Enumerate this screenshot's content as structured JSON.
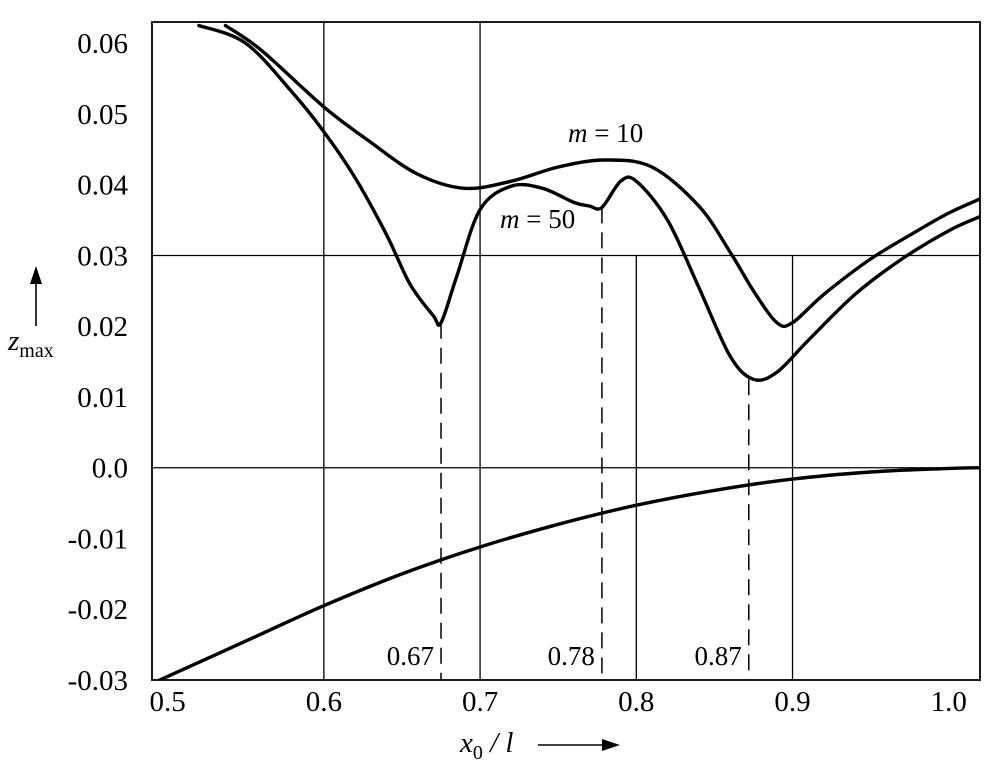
{
  "chart_data": {
    "type": "line",
    "xlabel": "x",
    "xlabel_sub": "0",
    "xlabel_suffix": " / l",
    "ylabel": "z",
    "ylabel_sub": "max",
    "xlim": [
      0.49,
      1.02
    ],
    "ylim": [
      -0.03,
      0.063
    ],
    "x_ticks": [
      0.5,
      0.6,
      0.7,
      0.8,
      0.9,
      1.0
    ],
    "x_tick_labels": [
      "0.5",
      "0.6",
      "0.7",
      "0.8",
      "0.9",
      "1.0"
    ],
    "y_ticks": [
      0.06,
      0.05,
      0.04,
      0.03,
      0.02,
      0.01,
      0.0,
      -0.01,
      -0.02,
      -0.03
    ],
    "y_tick_labels": [
      "0.06",
      "0.05",
      "0.04",
      "0.03",
      "0.02",
      "0.01",
      "0.0",
      "-0.01",
      "-0.02",
      "-0.03"
    ],
    "grid": "partial",
    "series": [
      {
        "name": "m = 10",
        "label_m": "m",
        "label_eq": " = 10",
        "x": [
          0.537,
          0.56,
          0.6,
          0.63,
          0.66,
          0.69,
          0.72,
          0.75,
          0.78,
          0.81,
          0.84,
          0.86,
          0.875,
          0.89,
          0.9,
          0.92,
          0.95,
          0.98,
          1.0,
          1.02
        ],
        "y": [
          0.0625,
          0.059,
          0.051,
          0.046,
          0.0415,
          0.0395,
          0.0405,
          0.0425,
          0.0435,
          0.0425,
          0.037,
          0.0305,
          0.025,
          0.0205,
          0.0205,
          0.0245,
          0.0295,
          0.0335,
          0.036,
          0.038
        ]
      },
      {
        "name": "m = 50",
        "label_m": "m",
        "label_eq": " = 50",
        "x": [
          0.52,
          0.55,
          0.58,
          0.6,
          0.62,
          0.64,
          0.655,
          0.67,
          0.675,
          0.685,
          0.7,
          0.72,
          0.74,
          0.76,
          0.77,
          0.778,
          0.79,
          0.8,
          0.82,
          0.84,
          0.86,
          0.875,
          0.89,
          0.91,
          0.94,
          0.97,
          1.0,
          1.02
        ],
        "y": [
          0.0625,
          0.06,
          0.053,
          0.0475,
          0.041,
          0.033,
          0.026,
          0.0215,
          0.0205,
          0.027,
          0.0365,
          0.0398,
          0.0395,
          0.0375,
          0.037,
          0.0368,
          0.0405,
          0.0405,
          0.035,
          0.0255,
          0.0158,
          0.0125,
          0.0135,
          0.018,
          0.0245,
          0.0295,
          0.0335,
          0.0355
        ]
      },
      {
        "name": "",
        "x": [
          0.49,
          0.55,
          0.6,
          0.65,
          0.7,
          0.75,
          0.8,
          0.85,
          0.9,
          0.95,
          1.0,
          1.02
        ],
        "y": [
          -0.0305,
          -0.0245,
          -0.0195,
          -0.015,
          -0.0112,
          -0.008,
          -0.0053,
          -0.0032,
          -0.0016,
          -0.0006,
          -0.0001,
          0.0
        ]
      }
    ],
    "markers": [
      {
        "x": 0.675,
        "y_top": 0.0205,
        "label": "0.67"
      },
      {
        "x": 0.778,
        "y_top": 0.0368,
        "label": "0.78"
      },
      {
        "x": 0.872,
        "y_top": 0.0125,
        "label": "0.87"
      }
    ]
  }
}
